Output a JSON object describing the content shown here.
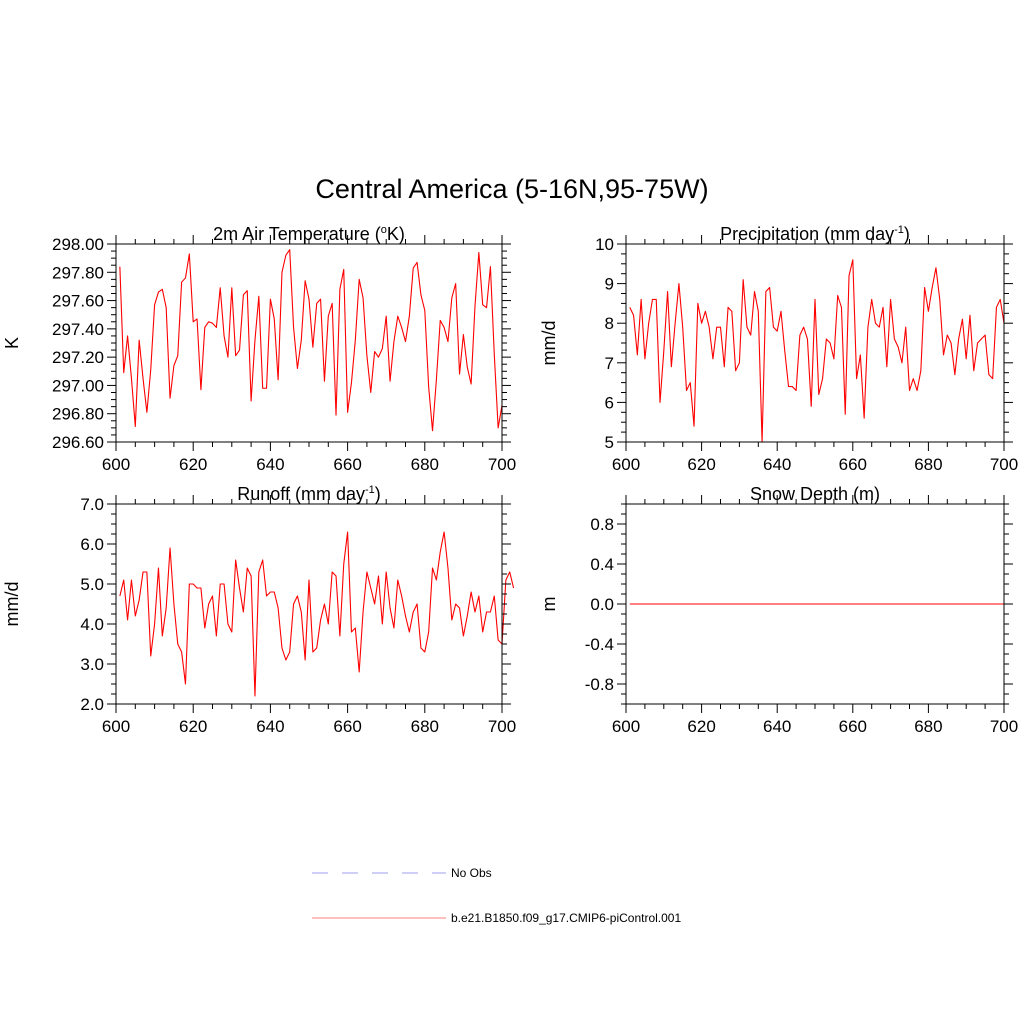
{
  "page_title": "Central America (5-16N,95-75W)",
  "line_color": "#ff0000",
  "legend": {
    "items": [
      {
        "label": "No Obs",
        "color": "#b0b0f0",
        "style": "dashed"
      },
      {
        "label": "b.e21.B1850.f09_g17.CMIP6-piControl.001",
        "color": "#ff9999",
        "style": "solid"
      }
    ]
  },
  "chart_data": [
    {
      "type": "line",
      "title": "2m Air Temperature",
      "title_unit": "(oK)",
      "title_pre": "2m Air Temperature (",
      "title_sup": "o",
      "title_post": "K)",
      "ylabel": "K",
      "xlim": [
        600,
        700
      ],
      "ylim": [
        296.6,
        298.0
      ],
      "xticks": [
        "600",
        "620",
        "640",
        "660",
        "680",
        "700"
      ],
      "yticks": [
        "296.60",
        "296.80",
        "297.00",
        "297.20",
        "297.40",
        "297.60",
        "297.80",
        "298.00"
      ],
      "x_start": 601,
      "values": [
        297.84,
        297.09,
        297.35,
        297.05,
        296.71,
        297.32,
        297.05,
        296.81,
        297.11,
        297.57,
        297.66,
        297.68,
        297.55,
        296.91,
        297.14,
        297.21,
        297.73,
        297.76,
        297.93,
        297.45,
        297.47,
        296.97,
        297.41,
        297.45,
        297.44,
        297.41,
        297.69,
        297.35,
        297.2,
        297.69,
        297.21,
        297.25,
        297.64,
        297.67,
        296.89,
        297.32,
        297.63,
        296.98,
        296.98,
        297.61,
        297.47,
        297.04,
        297.8,
        297.92,
        297.96,
        297.41,
        297.12,
        297.32,
        297.74,
        297.61,
        297.27,
        297.58,
        297.61,
        297.03,
        297.49,
        297.58,
        296.79,
        297.68,
        297.82,
        296.81,
        297.02,
        297.32,
        297.75,
        297.62,
        297.21,
        296.95,
        297.24,
        297.2,
        297.26,
        297.49,
        297.03,
        297.31,
        297.49,
        297.41,
        297.31,
        297.49,
        297.83,
        297.87,
        297.64,
        297.53,
        296.99,
        296.68,
        297.04,
        297.46,
        297.41,
        297.31,
        297.62,
        297.72,
        297.08,
        297.36,
        297.13,
        297.01,
        297.56,
        297.94,
        297.57,
        297.55,
        297.84,
        297.22,
        296.7,
        296.86
      ]
    },
    {
      "type": "line",
      "title": "Precipitation",
      "title_unit": "(mm day-1)",
      "title_pre": "Precipitation (mm day",
      "title_sup": "-1",
      "title_post": ")",
      "ylabel": "mm/d",
      "xlim": [
        600,
        700
      ],
      "ylim": [
        5,
        10
      ],
      "xticks": [
        "600",
        "620",
        "640",
        "660",
        "680",
        "700"
      ],
      "yticks": [
        "5",
        "6",
        "7",
        "8",
        "9",
        "10"
      ],
      "x_start": 601,
      "values": [
        8.4,
        8.2,
        7.2,
        8.6,
        7.1,
        8.0,
        8.6,
        8.6,
        6.0,
        7.3,
        8.8,
        6.9,
        8.0,
        9.0,
        7.9,
        6.3,
        6.5,
        5.4,
        8.5,
        8.0,
        8.3,
        7.9,
        7.1,
        7.9,
        7.9,
        6.9,
        8.4,
        8.3,
        6.8,
        7.0,
        9.1,
        7.9,
        7.7,
        8.8,
        8.3,
        5.0,
        8.8,
        8.9,
        7.9,
        7.8,
        8.3,
        7.3,
        6.4,
        6.4,
        6.3,
        7.7,
        7.9,
        7.6,
        5.9,
        8.6,
        6.2,
        6.6,
        7.6,
        7.5,
        7.1,
        8.7,
        8.4,
        5.7,
        9.2,
        9.6,
        6.6,
        7.2,
        5.6,
        7.9,
        8.6,
        8.0,
        7.9,
        8.4,
        6.9,
        8.6,
        7.6,
        7.4,
        7.0,
        7.9,
        6.3,
        6.6,
        6.3,
        6.8,
        8.9,
        8.3,
        8.9,
        9.4,
        8.6,
        7.2,
        7.7,
        7.5,
        6.7,
        7.6,
        8.1,
        7.1,
        8.2,
        6.8,
        7.5,
        7.6,
        7.7,
        6.7,
        6.6,
        8.4,
        8.6,
        8.0
      ]
    },
    {
      "type": "line",
      "title": "Runoff",
      "title_unit": "(mm day-1)",
      "title_pre": "Runoff (mm day",
      "title_sup": "-1",
      "title_post": ")",
      "ylabel": "mm/d",
      "xlim": [
        600,
        700
      ],
      "ylim": [
        2.0,
        7.0
      ],
      "xticks": [
        "600",
        "620",
        "640",
        "660",
        "680",
        "700"
      ],
      "yticks": [
        "2.0",
        "3.0",
        "4.0",
        "5.0",
        "6.0",
        "7.0"
      ],
      "x_start": 601,
      "values": [
        4.7,
        5.1,
        4.1,
        5.1,
        4.2,
        4.6,
        5.3,
        5.3,
        3.2,
        4.0,
        5.4,
        3.7,
        4.4,
        5.9,
        4.5,
        3.5,
        3.3,
        2.5,
        5.0,
        5.0,
        4.9,
        4.9,
        3.9,
        4.5,
        4.7,
        3.7,
        5.0,
        5.0,
        4.0,
        3.8,
        5.6,
        4.9,
        4.3,
        5.4,
        5.2,
        2.2,
        5.3,
        5.6,
        4.7,
        4.8,
        4.8,
        4.4,
        3.4,
        3.1,
        3.3,
        4.5,
        4.7,
        4.3,
        3.1,
        5.1,
        3.3,
        3.4,
        4.1,
        4.5,
        4.0,
        5.3,
        5.2,
        3.7,
        5.5,
        6.3,
        3.8,
        3.9,
        2.8,
        4.3,
        5.3,
        4.9,
        4.5,
        5.2,
        4.0,
        5.3,
        4.4,
        3.9,
        5.1,
        4.7,
        4.2,
        3.8,
        4.3,
        4.5,
        3.4,
        3.3,
        3.8,
        5.4,
        5.1,
        5.8,
        6.3,
        5.4,
        4.1,
        4.5,
        4.4,
        3.7,
        4.2,
        4.8,
        4.3,
        4.7,
        3.8,
        4.3,
        4.3,
        4.7,
        3.6,
        3.5,
        5.1,
        5.3,
        4.9
      ]
    },
    {
      "type": "line",
      "title": "Snow Depth",
      "title_unit": "(m)",
      "title_pre": "Snow Depth (m)",
      "title_sup": "",
      "title_post": "",
      "ylabel": "m",
      "xlim": [
        600,
        700
      ],
      "ylim": [
        -1.0,
        1.0
      ],
      "xticks": [
        "600",
        "620",
        "640",
        "660",
        "680",
        "700"
      ],
      "yticks": [
        "-0.8",
        "-0.4",
        "0.0",
        "0.4",
        "0.8"
      ],
      "x_start": 601,
      "values": [
        0,
        0,
        0,
        0,
        0,
        0,
        0,
        0,
        0,
        0,
        0,
        0,
        0,
        0,
        0,
        0,
        0,
        0,
        0,
        0,
        0,
        0,
        0,
        0,
        0,
        0,
        0,
        0,
        0,
        0,
        0,
        0,
        0,
        0,
        0,
        0,
        0,
        0,
        0,
        0,
        0,
        0,
        0,
        0,
        0,
        0,
        0,
        0,
        0,
        0,
        0,
        0,
        0,
        0,
        0,
        0,
        0,
        0,
        0,
        0,
        0,
        0,
        0,
        0,
        0,
        0,
        0,
        0,
        0,
        0,
        0,
        0,
        0,
        0,
        0,
        0,
        0,
        0,
        0,
        0,
        0,
        0,
        0,
        0,
        0,
        0,
        0,
        0,
        0,
        0,
        0,
        0,
        0,
        0,
        0,
        0,
        0,
        0,
        0,
        0,
        0
      ]
    }
  ]
}
